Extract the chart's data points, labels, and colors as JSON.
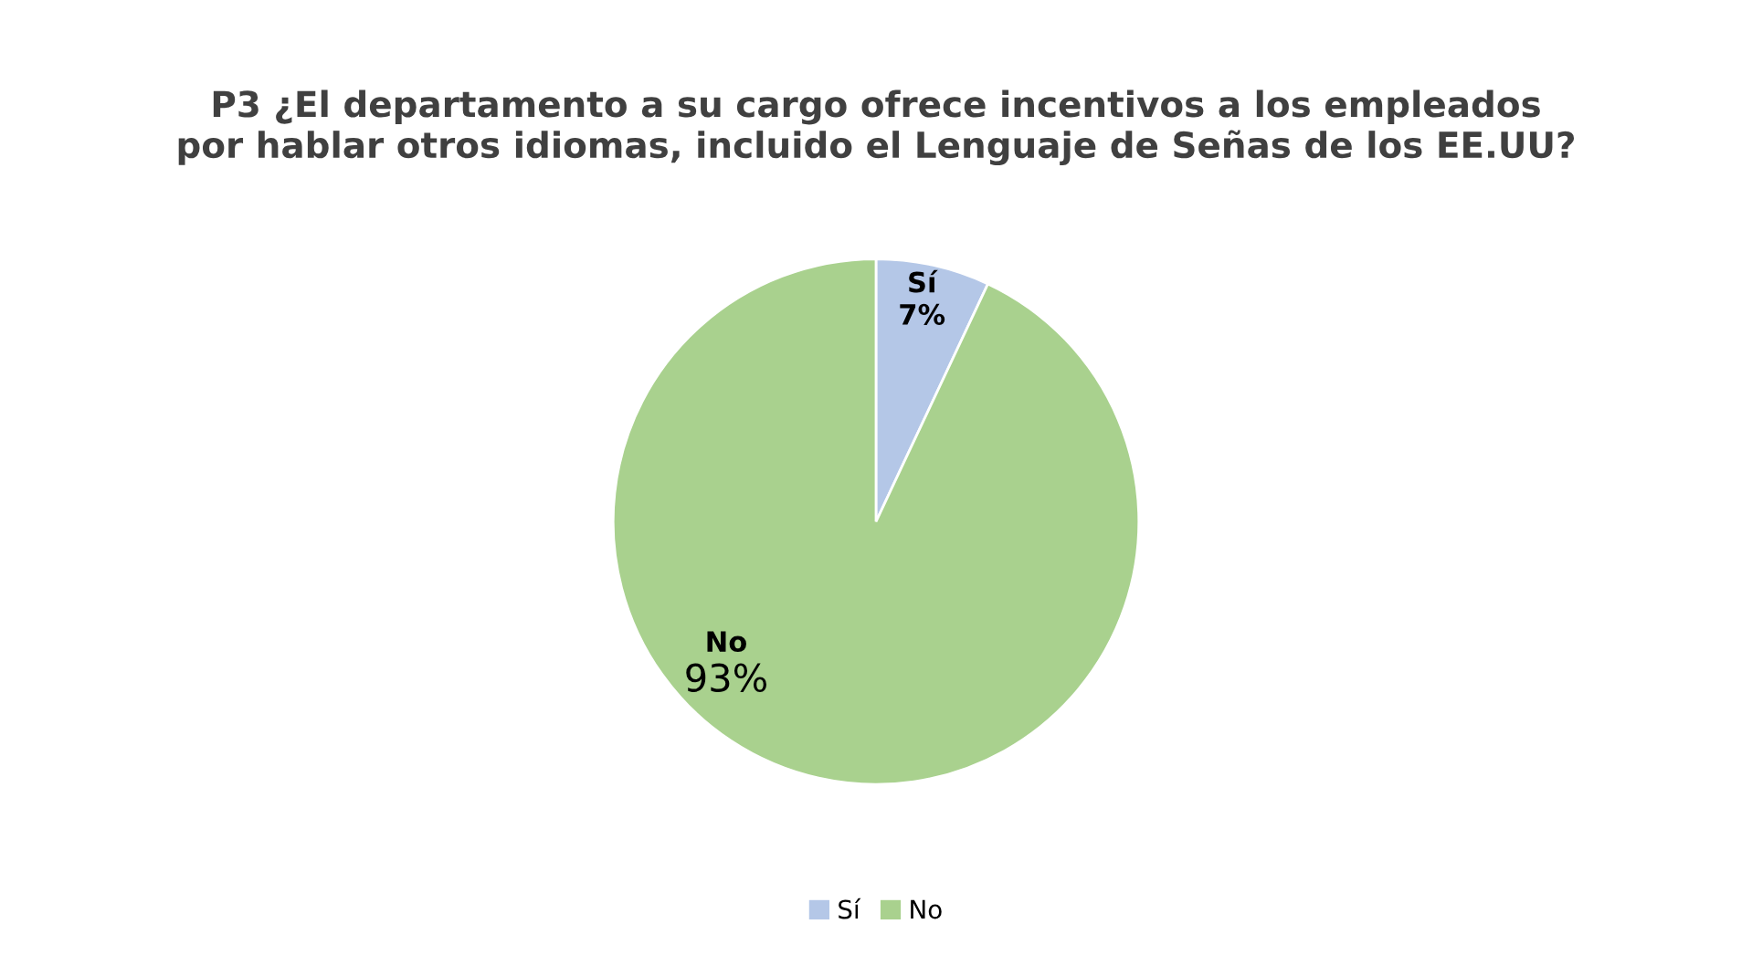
{
  "chart_data": {
    "type": "pie",
    "title": "P3 ¿El departamento a su cargo ofrece incentivos a los empleados\npor hablar otros idiomas, incluido el Lenguaje de Señas de los EE.UU?",
    "categories": [
      "Sí",
      "No"
    ],
    "values": [
      7,
      93
    ],
    "colors": [
      "#b4c7e7",
      "#a9d18e"
    ],
    "value_labels": [
      "7%",
      "93%"
    ],
    "legend": "bottom"
  }
}
